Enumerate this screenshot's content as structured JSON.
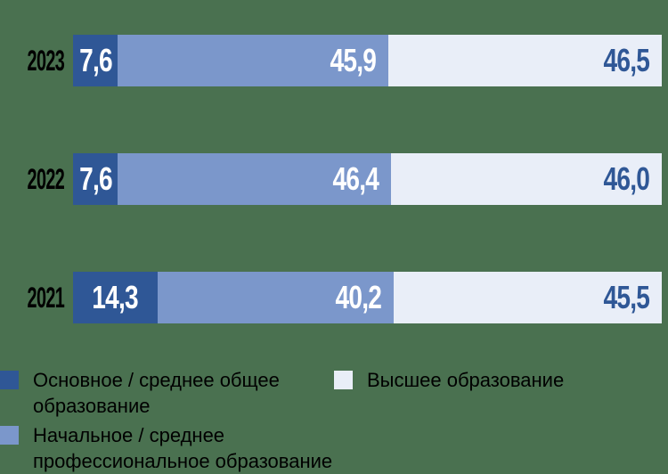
{
  "background_color": "#4A7150",
  "colors": {
    "series_basic": "#2F5796",
    "series_vocational": "#7B97CB",
    "series_higher": "#E9EEF8",
    "value_on_dark": "#FFFFFF",
    "value_on_light": "#2F5796",
    "year_label": "#000000",
    "legend_text": "#000000"
  },
  "chart_data": {
    "type": "bar",
    "orientation": "horizontal-stacked",
    "title": "",
    "xlabel": "",
    "ylabel": "",
    "xlim": [
      0,
      100
    ],
    "grid": false,
    "legend_position": "bottom",
    "value_format": "comma-decimal",
    "categories": [
      "2023",
      "2022",
      "2021"
    ],
    "series": [
      {
        "name": "Основное / среднее общее образование",
        "values": [
          7.6,
          7.6,
          14.3
        ],
        "color": "#2F5796"
      },
      {
        "name": "Начальное / среднее профессиональное образование",
        "values": [
          45.9,
          46.4,
          40.2
        ],
        "color": "#7B97CB"
      },
      {
        "name": "Высшее образование",
        "values": [
          46.5,
          46.0,
          45.5
        ],
        "color": "#E9EEF8"
      }
    ]
  },
  "rows": [
    {
      "year": "2023",
      "segments": [
        {
          "label": "7,6",
          "value": 7.6
        },
        {
          "label": "45,9",
          "value": 45.9
        },
        {
          "label": "46,5",
          "value": 46.5
        }
      ]
    },
    {
      "year": "2022",
      "segments": [
        {
          "label": "7,6",
          "value": 7.6
        },
        {
          "label": "46,4",
          "value": 46.4
        },
        {
          "label": "46,0",
          "value": 46.0
        }
      ]
    },
    {
      "year": "2021",
      "segments": [
        {
          "label": "14,3",
          "value": 14.3
        },
        {
          "label": "40,2",
          "value": 40.2
        },
        {
          "label": "45,5",
          "value": 45.5
        }
      ]
    }
  ],
  "legend": {
    "items": [
      {
        "label": "Основное / среднее общее образование",
        "lines": [
          "Основное / среднее общее",
          "образование"
        ],
        "color": "#2F5796"
      },
      {
        "label": "Начальное / среднее профессиональное образование",
        "lines": [
          "Начальное / среднее",
          "профессиональное образование"
        ],
        "color": "#7B97CB"
      },
      {
        "label": "Высшее образование",
        "lines": [
          "Высшее образование"
        ],
        "color": "#E9EEF8"
      }
    ]
  }
}
